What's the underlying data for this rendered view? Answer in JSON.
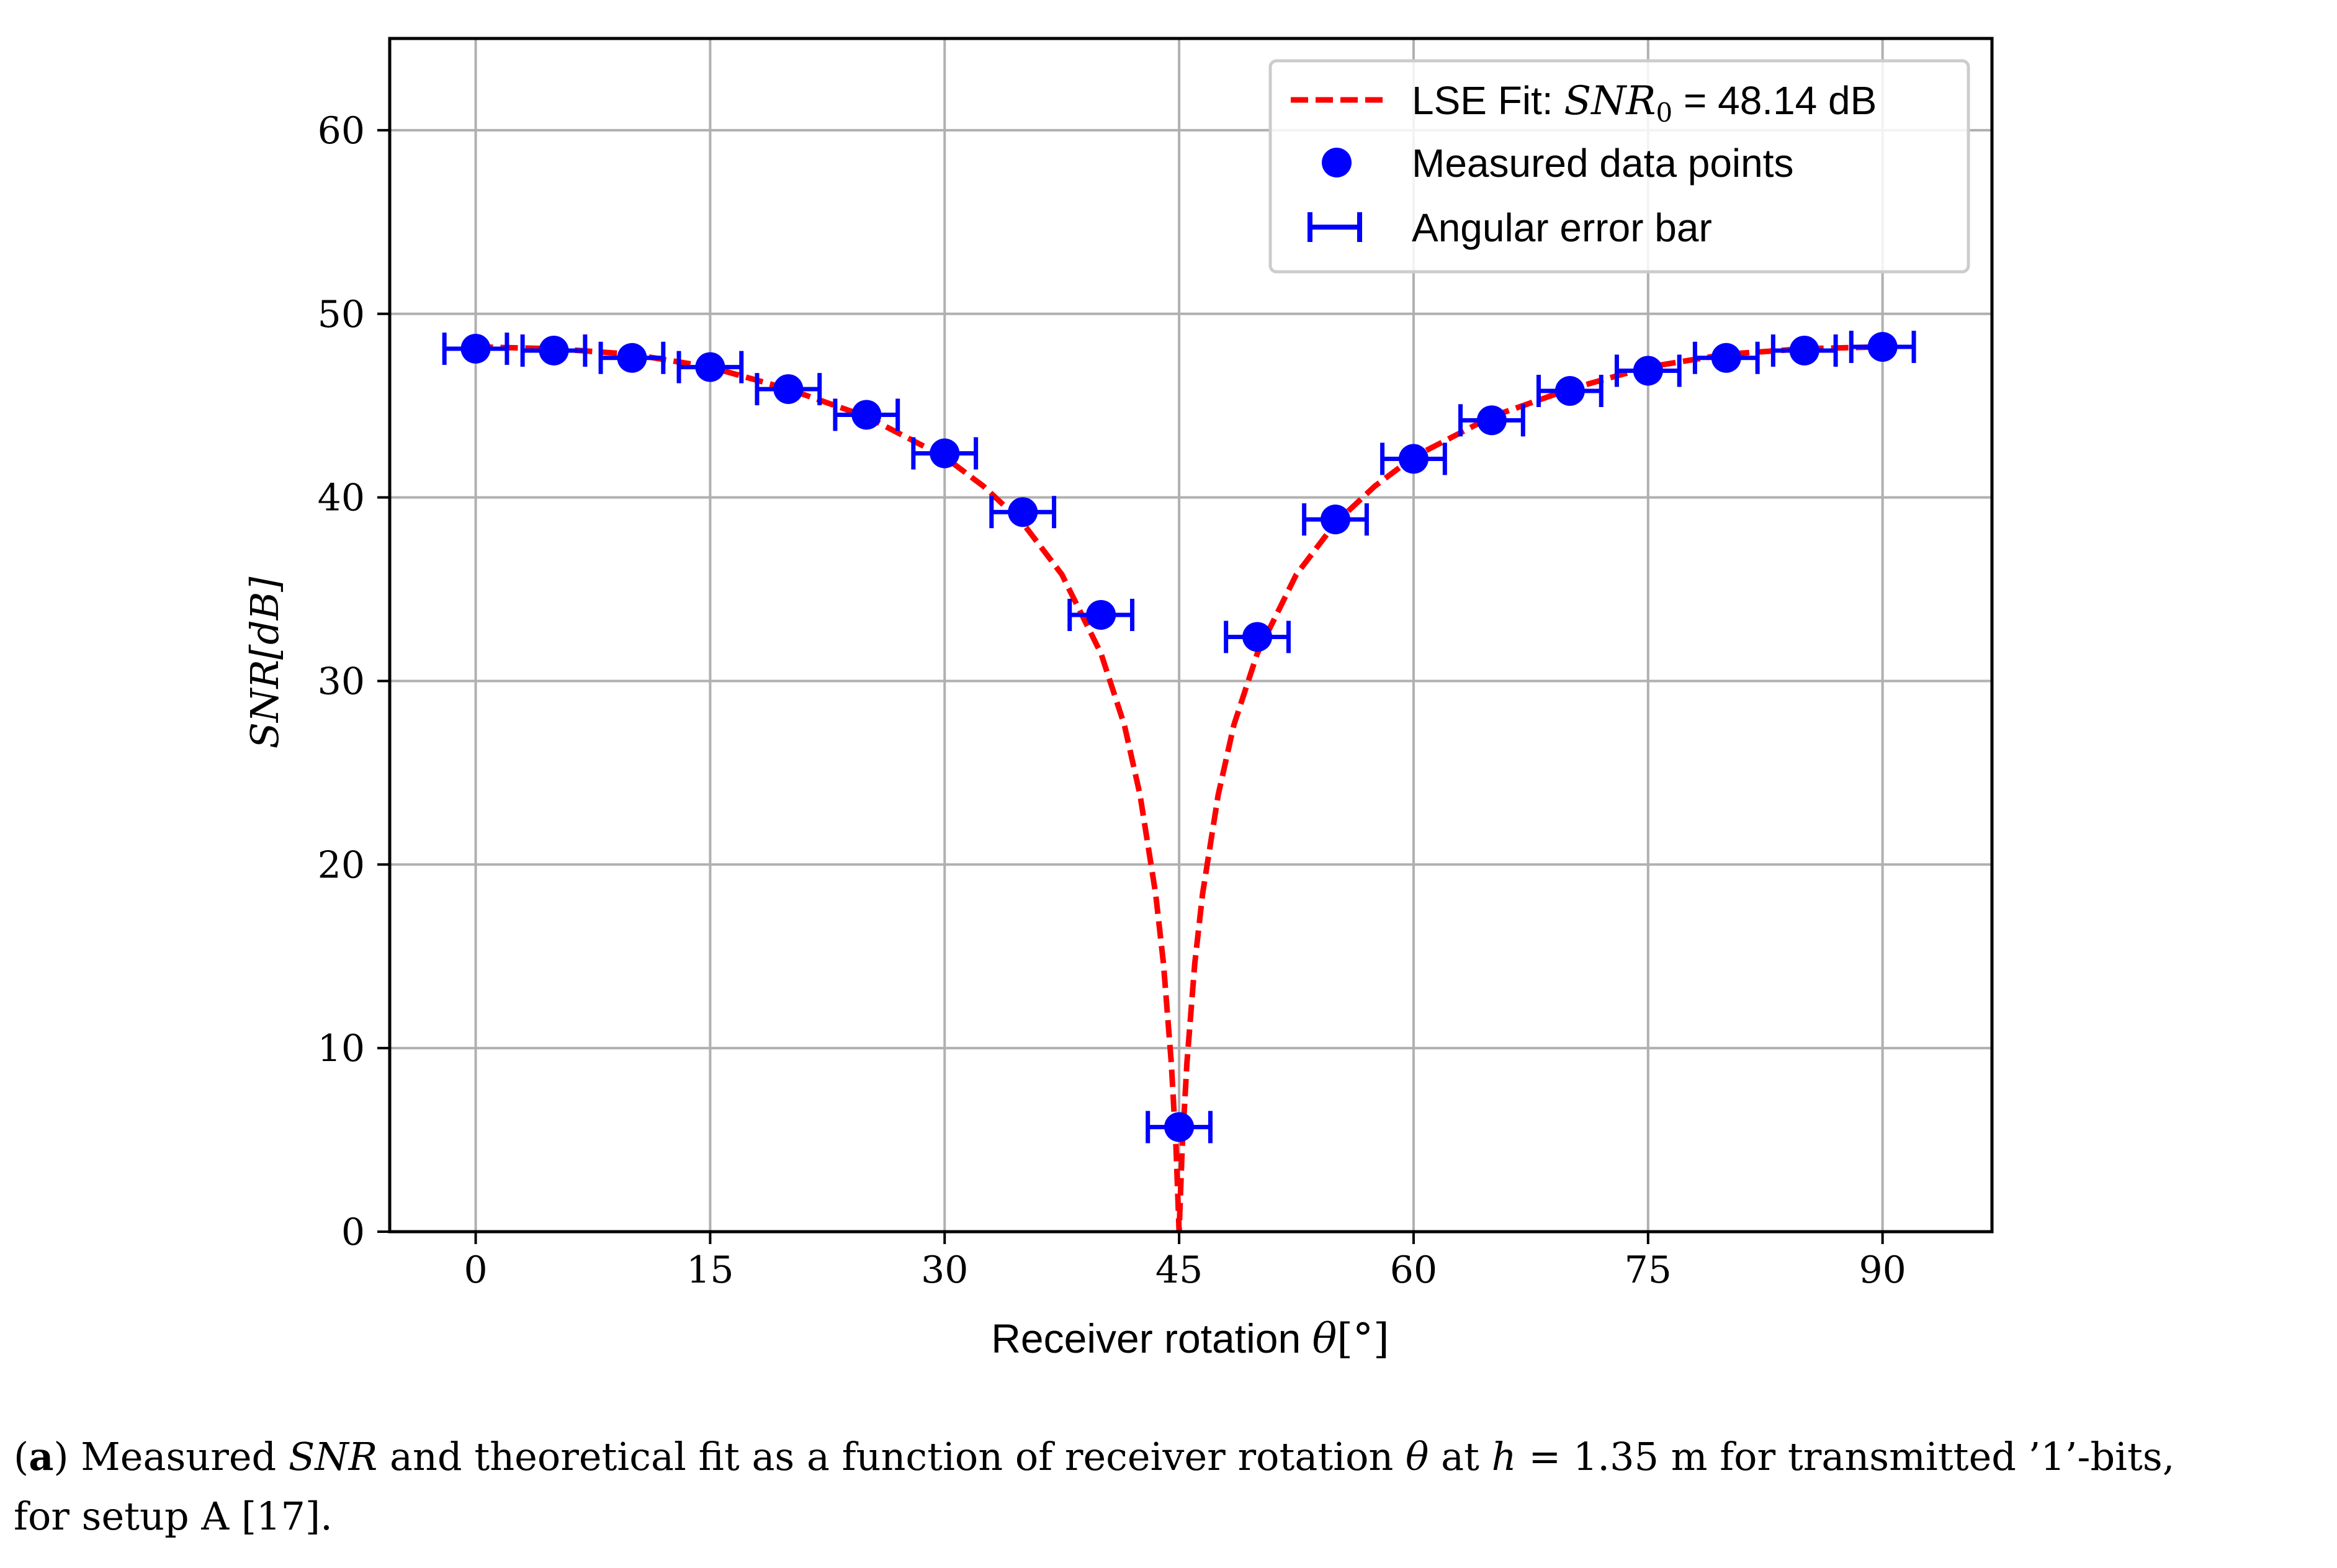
{
  "chart_data": {
    "type": "scatter",
    "xlabel_prefix": "Receiver rotation ",
    "xlabel_symbol": "θ",
    "xlabel_unit": "[°]",
    "ylabel": "SNR[dB]",
    "xlim": [
      -5.5,
      97
    ],
    "ylim": [
      0,
      65
    ],
    "xticks": [
      0,
      15,
      30,
      45,
      60,
      75,
      90
    ],
    "yticks": [
      0,
      10,
      20,
      30,
      40,
      50,
      60
    ],
    "grid": true,
    "legend_position": "top-right",
    "legend": {
      "fit_prefix": "LSE Fit: ",
      "fit_math": "SNR",
      "fit_sub": "0",
      "fit_suffix": " = 48.14 dB",
      "points": "Measured data points",
      "errorbar": "Angular error bar"
    },
    "fit": {
      "snr0_db": 48.14,
      "null_angle_deg": 45,
      "x": [
        0,
        5,
        10,
        15,
        20,
        25,
        30,
        32.5,
        35,
        37.5,
        40,
        41.5,
        42.5,
        43.5,
        44,
        44.5,
        44.8,
        45,
        45.2,
        45.5,
        46,
        46.5,
        47.5,
        48.5,
        50,
        52.5,
        55,
        57.5,
        60,
        65,
        70,
        75,
        80,
        85,
        90
      ],
      "y": [
        48.2,
        48.1,
        47.8,
        47.1,
        45.9,
        44.4,
        42.2,
        40.6,
        38.6,
        35.8,
        31.5,
        27.6,
        23.8,
        18.4,
        14.6,
        9.2,
        4.6,
        0,
        4.6,
        9.2,
        14.6,
        18.4,
        23.8,
        27.6,
        31.5,
        35.8,
        38.6,
        40.6,
        42.2,
        44.4,
        45.9,
        47.1,
        47.8,
        48.1,
        48.2
      ]
    },
    "series": [
      {
        "name": "Measured data points",
        "x": [
          0,
          5,
          10,
          15,
          20,
          25,
          30,
          35,
          40,
          45,
          50,
          55,
          60,
          65,
          70,
          75,
          80,
          85,
          90
        ],
        "y": [
          48.1,
          48.0,
          47.6,
          47.1,
          45.9,
          44.5,
          42.4,
          39.2,
          33.6,
          5.7,
          32.4,
          38.8,
          42.1,
          44.2,
          45.8,
          46.9,
          47.6,
          48.0,
          48.2
        ],
        "x_error": 2
      }
    ],
    "colors": {
      "fit": "#ff0000",
      "points": "#0000ff",
      "grid": "#b0b0b0",
      "axis": "#000000",
      "legend_border": "#cccccc"
    }
  },
  "caption": {
    "label": "a",
    "text_1": " Measured ",
    "math_1": "SNR",
    "text_2": " and theoretical fit as a function of receiver rotation ",
    "math_2": "θ",
    "text_3": " at ",
    "math_3": "h",
    "text_4": " = 1.35 m for transmitted ’1’-bits,",
    "line_2": "for setup A [17]."
  }
}
